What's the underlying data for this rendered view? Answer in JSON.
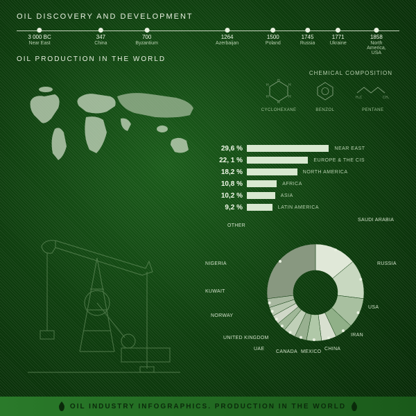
{
  "header": {
    "title": "OIL DISCOVERY AND DEVELOPMENT"
  },
  "timeline": {
    "line_color": "#c8d8c0",
    "points": [
      {
        "year": "3 000 BC",
        "location": "Near East",
        "pos": 6
      },
      {
        "year": "347",
        "location": "China",
        "pos": 22
      },
      {
        "year": "700",
        "location": "Byzantium",
        "pos": 34
      },
      {
        "year": "1264",
        "location": "Azerbaijan",
        "pos": 55
      },
      {
        "year": "1500",
        "location": "Poland",
        "pos": 67
      },
      {
        "year": "1745",
        "location": "Russia",
        "pos": 76
      },
      {
        "year": "1771",
        "location": "Ukraine",
        "pos": 84
      },
      {
        "year": "1858",
        "location": "North America, USA",
        "pos": 94
      }
    ]
  },
  "production": {
    "title": "OIL PRODUCTION IN THE WORLD"
  },
  "chemical": {
    "title": "CHEMICAL COMPOSITION",
    "items": [
      {
        "name": "CYCLOHEXANE"
      },
      {
        "name": "BENZOL"
      },
      {
        "name": "PENTANE"
      }
    ]
  },
  "bars": {
    "type": "bar",
    "max_value": 30,
    "bar_color": "#d8e8d0",
    "label_color": "#b8d0b0",
    "value_color": "#f0f8e8",
    "value_fontsize": 10,
    "label_fontsize": 7,
    "rows": [
      {
        "pct": "29,6 %",
        "value": 29.6,
        "label": "NEAR EAST"
      },
      {
        "pct": "22, 1 %",
        "value": 22.1,
        "label": "EUROPE & THE CIS"
      },
      {
        "pct": "18,2 %",
        "value": 18.2,
        "label": "NORTH AMERICA"
      },
      {
        "pct": "10,8 %",
        "value": 10.8,
        "label": "AFRICA"
      },
      {
        "pct": "10,2 %",
        "value": 10.2,
        "label": "ASIA"
      },
      {
        "pct": "9,2 %",
        "value": 9.2,
        "label": "LATIN AMERICA"
      }
    ]
  },
  "donut": {
    "type": "pie",
    "inner_radius": 0.45,
    "background_color": "transparent",
    "slices": [
      {
        "label": "SAUDI ARABIA",
        "value": 14,
        "color": "#e0e8d8"
      },
      {
        "label": "RUSSIA",
        "value": 13,
        "color": "#c8d8c0"
      },
      {
        "label": "USA",
        "value": 10,
        "color": "#a8c0a0"
      },
      {
        "label": "IRAN",
        "value": 6,
        "color": "#90b088"
      },
      {
        "label": "CHINA",
        "value": 5,
        "color": "#d8e0d0"
      },
      {
        "label": "MEXICO",
        "value": 5,
        "color": "#b0c8a8"
      },
      {
        "label": "CANADA",
        "value": 4,
        "color": "#98b090"
      },
      {
        "label": "UAE",
        "value": 4,
        "color": "#c0d0b8"
      },
      {
        "label": "UNITED KINGDOM",
        "value": 3,
        "color": "#a0b898"
      },
      {
        "label": "NORWAY",
        "value": 3,
        "color": "#d0d8c8"
      },
      {
        "label": "KUWAIT",
        "value": 3,
        "color": "#b8c8b0"
      },
      {
        "label": "NIGERIA",
        "value": 3,
        "color": "#a8b8a0"
      },
      {
        "label": "OTHER",
        "value": 27,
        "color": "#889880"
      }
    ],
    "label_fontsize": 7,
    "label_color": "#d0e0c8"
  },
  "footer": {
    "text": "OIL INDUSTRY INFOGRAPHICS. PRODUCTION IN THE WORLD"
  },
  "colors": {
    "bg_center": "#1a5c1a",
    "bg_mid": "#0d3d0d",
    "bg_edge": "#062806",
    "text_primary": "#e8f0e0",
    "text_secondary": "#b8d0b0",
    "footer_bg_left": "#2a7a2a",
    "footer_bg_right": "#1a5a1a",
    "footer_text": "#0a2a0a"
  }
}
